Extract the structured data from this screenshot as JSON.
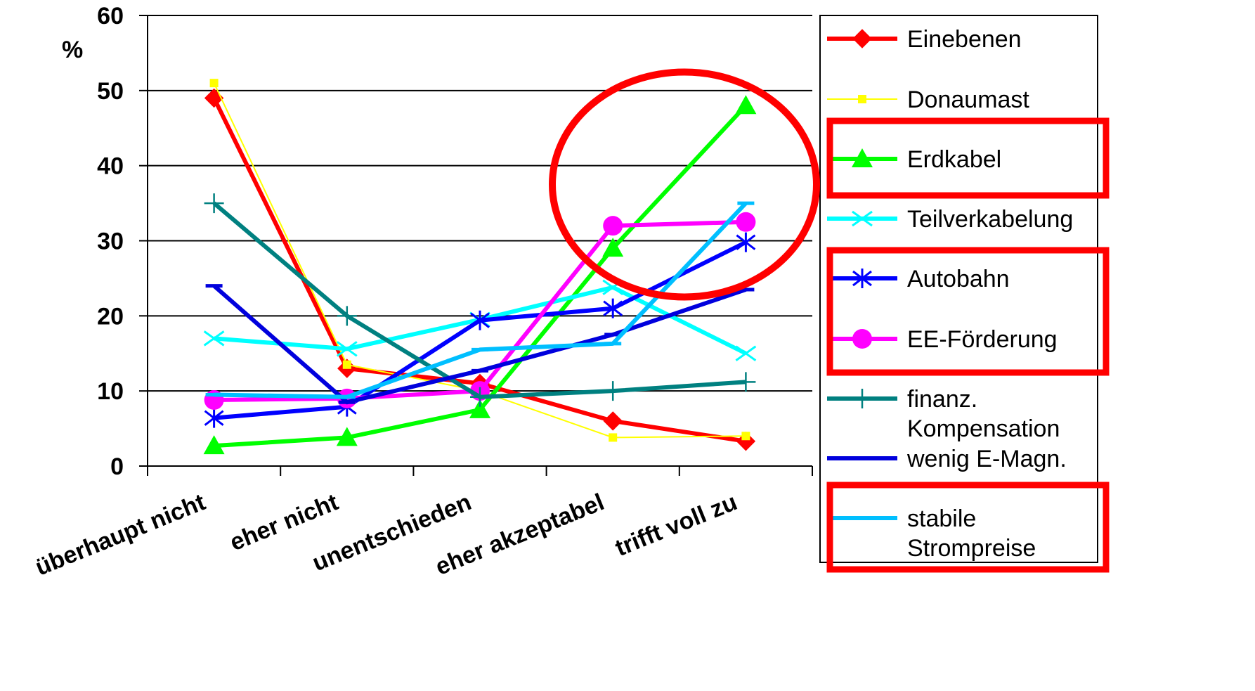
{
  "chart_data": {
    "type": "line",
    "ylabel": "%",
    "ylim": [
      0,
      60
    ],
    "yticks": [
      0,
      10,
      20,
      30,
      40,
      50,
      60
    ],
    "grid": true,
    "legend_position": "right",
    "categories": [
      "überhaupt nicht",
      "eher nicht",
      "unentschieden",
      "eher akzeptabel",
      "trifft voll zu"
    ],
    "series": [
      {
        "name": "Einebenen",
        "color": "#ff0000",
        "marker": "diamond",
        "values": [
          49,
          13,
          11,
          6,
          3.3
        ]
      },
      {
        "name": "Donaumast",
        "color": "#ffff00",
        "marker": "square",
        "thin": true,
        "values": [
          51,
          13.5,
          10,
          3.8,
          4
        ]
      },
      {
        "name": "Erdkabel",
        "color": "#00ff00",
        "marker": "triangle",
        "values": [
          2.7,
          3.8,
          7.5,
          29,
          48
        ]
      },
      {
        "name": "Teilverkabelung",
        "color": "#00ffff",
        "marker": "x",
        "values": [
          17,
          15.6,
          19.5,
          23.8,
          15
        ]
      },
      {
        "name": "Autobahn",
        "color": "#0000ff",
        "marker": "asterisk",
        "values": [
          6.4,
          7.9,
          19.4,
          21,
          29.8
        ]
      },
      {
        "name": "EE-Förderung",
        "color": "#ff00ff",
        "marker": "circle",
        "values": [
          8.8,
          9,
          10,
          32,
          32.5
        ]
      },
      {
        "name": "finanz. Kompensation",
        "legend_lines": [
          "finanz.",
          "Kompensation"
        ],
        "color": "#008080",
        "marker": "plus",
        "values": [
          35,
          20,
          9.2,
          10,
          11.2
        ]
      },
      {
        "name": "wenig E-Magn.",
        "color": "#0000dd",
        "marker": "dash",
        "values": [
          24,
          8.5,
          12.7,
          17.5,
          23.5
        ]
      },
      {
        "name": "stabile Strompreise",
        "legend_lines": [
          "stabile",
          "Strompreise"
        ],
        "color": "#00bfff",
        "marker": "dash",
        "values": [
          9.5,
          9.2,
          15.5,
          16.3,
          35
        ]
      }
    ],
    "highlight_boxes": [
      "Erdkabel",
      "Autobahn",
      "EE-Förderung",
      "stabile Strompreise"
    ],
    "highlight_circle": {
      "category_index": 3.5,
      "center_value": 30
    }
  }
}
